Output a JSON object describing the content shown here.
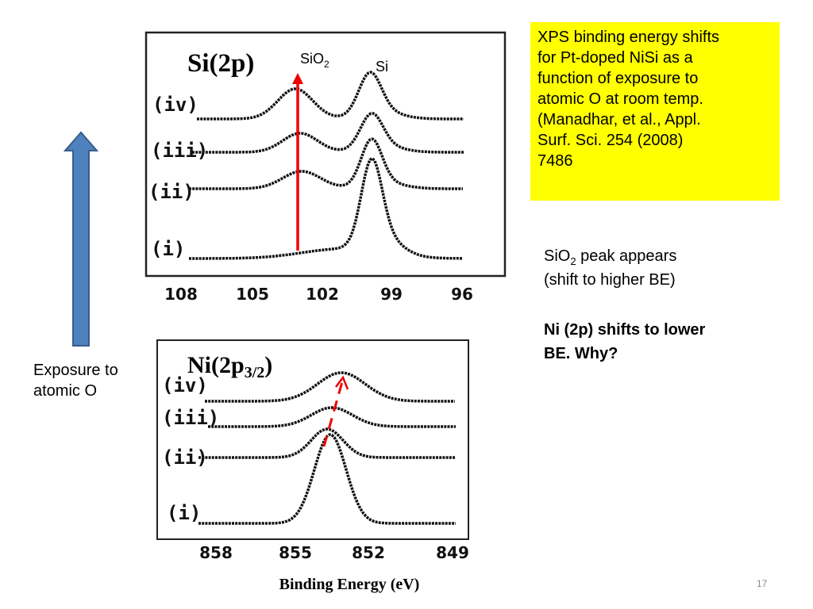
{
  "si_plot": {
    "title": {
      "text": "Si(2p",
      "end": ")"
    },
    "spectra": [
      "(iv)",
      "(iii)",
      "(ii)",
      "(i)"
    ],
    "sio2_label": {
      "text": "SiO",
      "sub": "2"
    },
    "si_label": "Si",
    "x_ticks": [
      "108",
      "105",
      "102",
      "99",
      "96"
    ]
  },
  "ni_plot": {
    "title": {
      "text": "Ni(2p",
      "sub": "3/2",
      "end": ")"
    },
    "spectra": [
      "(iv)",
      "(iii)",
      "(ii)",
      "(i)"
    ],
    "x_ticks": [
      "858",
      "855",
      "852",
      "849"
    ],
    "x_label": "Binding Energy (eV)"
  },
  "arrow_label": [
    "Exposure to",
    "atomic O"
  ],
  "note_box": [
    "XPS binding energy shifts",
    "for Pt-doped NiSi as a",
    "function of exposure to",
    "atomic O at room temp.",
    "(Manadhar, et al., Appl.",
    "Surf. Sci. 254 (2008)",
    "7486"
  ],
  "observation_1": {
    "line1": {
      "text": "SiO",
      "sub": "2",
      "rest": " peak appears"
    },
    "line2": "(shift to higher BE)"
  },
  "observation_2": [
    "Ni (2p) shifts to lower",
    "BE.  Why?"
  ],
  "page_number": "17"
}
